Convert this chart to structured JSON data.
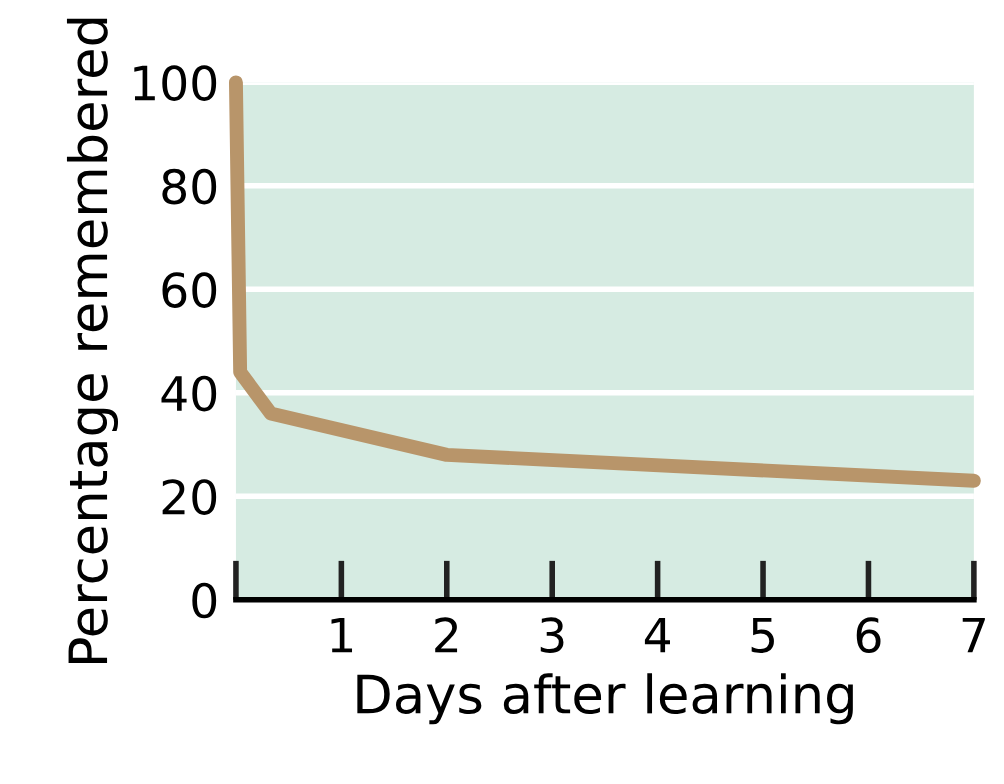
{
  "chart_data": {
    "type": "line",
    "xlabel": "Days after learning",
    "ylabel": "Percentage remembered",
    "x": [
      0,
      0.04,
      0.33,
      2,
      7
    ],
    "series": [
      {
        "color": "#b8956a",
        "values": [
          100,
          44,
          36,
          28,
          23
        ]
      }
    ],
    "xlim": [
      0,
      7
    ],
    "xticks": [
      {
        "value": 0,
        "label": null
      },
      1,
      2,
      3,
      4,
      5,
      6,
      7
    ],
    "ylim": [
      0,
      100
    ],
    "yticks": [
      0,
      20,
      40,
      60,
      80,
      100
    ],
    "grid": "y",
    "marker": "none",
    "line_style": "solid"
  }
}
